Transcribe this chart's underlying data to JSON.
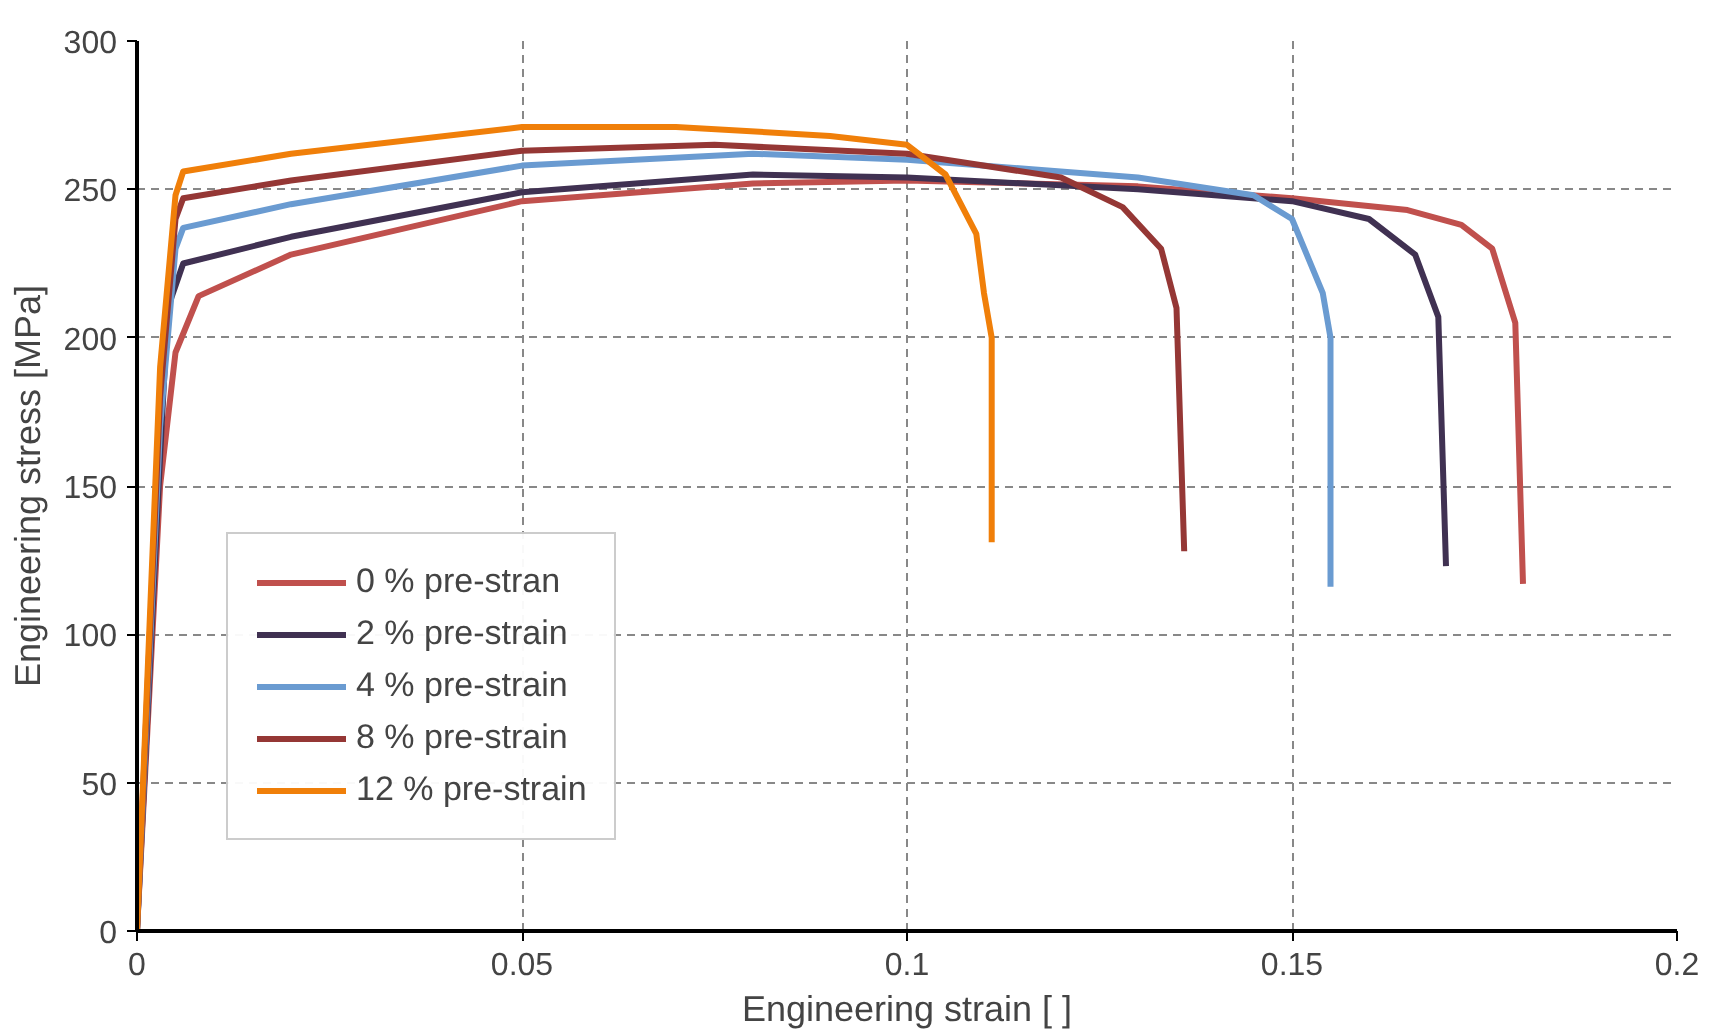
{
  "chart_data": {
    "type": "line",
    "xlabel": "Engineering strain [ ]",
    "ylabel": "Engineering stress [MPa]",
    "xlim": [
      0,
      0.2
    ],
    "ylim": [
      0,
      300
    ],
    "xticks": [
      0,
      0.05,
      0.1,
      0.15,
      0.2
    ],
    "yticks": [
      0,
      50,
      100,
      150,
      200,
      250,
      300
    ],
    "grid": true,
    "legend": "bottom left",
    "marker": "none",
    "line_style": "solid",
    "series": [
      {
        "name": "0 % pre-stran",
        "color": "#c0504d",
        "x": [
          0,
          0.003,
          0.005,
          0.008,
          0.02,
          0.05,
          0.08,
          0.1,
          0.13,
          0.15,
          0.165,
          0.172,
          0.176,
          0.179,
          0.18
        ],
        "values": [
          0,
          150,
          195,
          214,
          228,
          246,
          252,
          253,
          251,
          247,
          243,
          238,
          230,
          205,
          117
        ]
      },
      {
        "name": "2 % pre-strain",
        "color": "#403152",
        "x": [
          0,
          0.003,
          0.004,
          0.006,
          0.02,
          0.05,
          0.08,
          0.1,
          0.13,
          0.15,
          0.16,
          0.166,
          0.169,
          0.17
        ],
        "values": [
          0,
          160,
          210,
          225,
          234,
          249,
          255,
          254,
          250,
          246,
          240,
          228,
          207,
          123
        ]
      },
      {
        "name": "4 % pre-strain",
        "color": "#6a9bd1",
        "x": [
          0,
          0.003,
          0.005,
          0.006,
          0.02,
          0.05,
          0.08,
          0.1,
          0.13,
          0.145,
          0.15,
          0.154,
          0.155,
          0.155
        ],
        "values": [
          0,
          170,
          230,
          237,
          245,
          258,
          262,
          260,
          254,
          248,
          240,
          215,
          200,
          116
        ]
      },
      {
        "name": "8 % pre-strain",
        "color": "#953735",
        "x": [
          0,
          0.003,
          0.005,
          0.006,
          0.02,
          0.05,
          0.075,
          0.1,
          0.12,
          0.128,
          0.133,
          0.135,
          0.136
        ],
        "values": [
          0,
          180,
          240,
          247,
          253,
          263,
          265,
          262,
          254,
          244,
          230,
          210,
          128
        ]
      },
      {
        "name": "12 % pre-strain",
        "color": "#f07f09",
        "x": [
          0,
          0.003,
          0.005,
          0.006,
          0.02,
          0.05,
          0.07,
          0.09,
          0.1,
          0.105,
          0.109,
          0.11,
          0.111,
          0.111
        ],
        "values": [
          0,
          190,
          248,
          256,
          262,
          271,
          271,
          268,
          265,
          255,
          235,
          215,
          200,
          131
        ]
      }
    ]
  }
}
